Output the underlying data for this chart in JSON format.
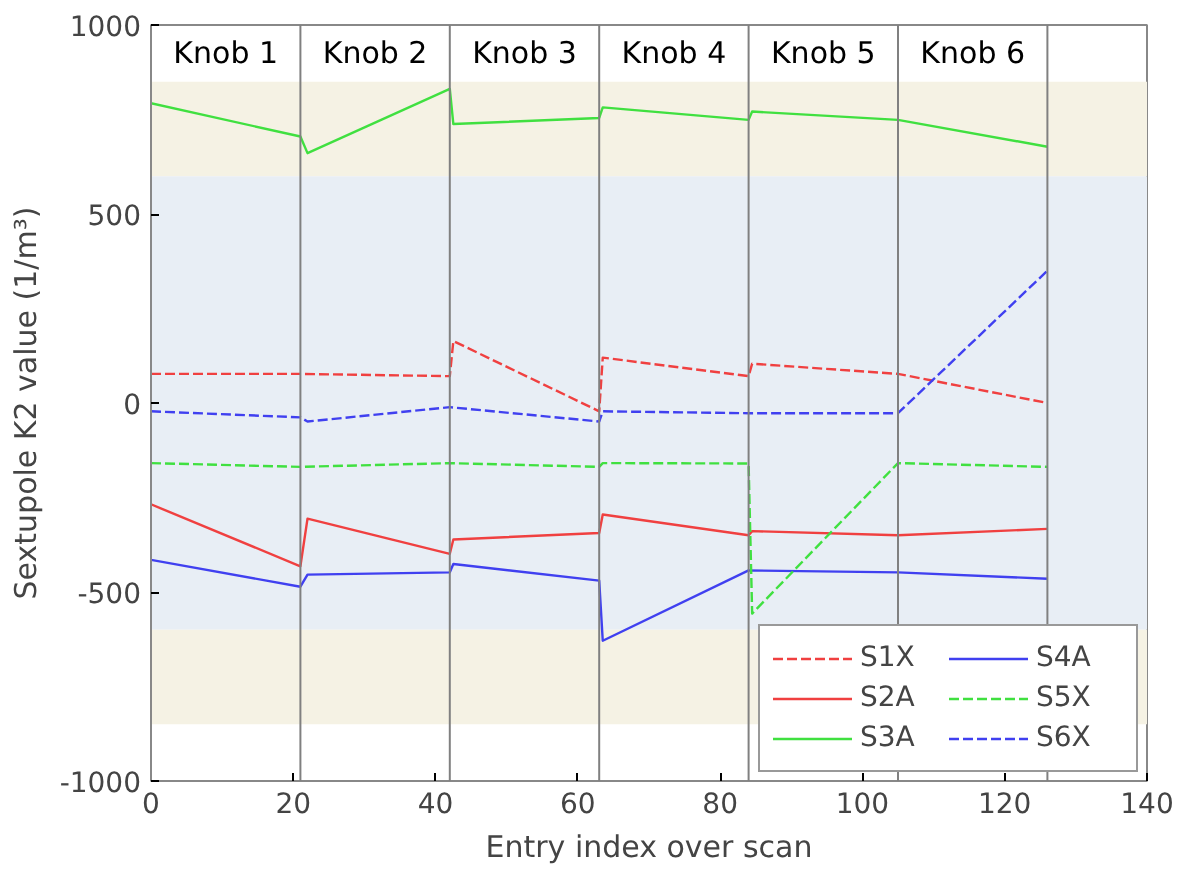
{
  "chart_data": {
    "type": "line",
    "xlabel": "Entry index over scan",
    "ylabel": "Sextupole K2 value (1/m³)",
    "xlim": [
      0,
      140
    ],
    "xticks": [
      0,
      20,
      40,
      60,
      80,
      100,
      120,
      140
    ],
    "ylim": [
      -1000,
      1000
    ],
    "yticks": [
      -1000,
      -500,
      0,
      500,
      1000
    ],
    "grid": false,
    "legend": "bottom right",
    "marker": "none",
    "bands": [
      {
        "axis": "y",
        "from": 600,
        "to": 850,
        "color": "#f5f2e4"
      },
      {
        "axis": "y",
        "from": -600,
        "to": 600,
        "color": "#e8eef5"
      },
      {
        "axis": "y",
        "from": -850,
        "to": -600,
        "color": "#f5f2e4"
      }
    ],
    "ref_lines": [
      {
        "axis": "x",
        "value": 21,
        "color": "#808080"
      },
      {
        "axis": "x",
        "value": 42,
        "color": "#808080"
      },
      {
        "axis": "x",
        "value": 63,
        "color": "#808080"
      },
      {
        "axis": "x",
        "value": 84,
        "color": "#808080"
      },
      {
        "axis": "x",
        "value": 105,
        "color": "#808080"
      },
      {
        "axis": "x",
        "value": 126,
        "color": "#808080"
      }
    ],
    "annotations": [
      "Knob 1",
      "Knob 2",
      "Knob 3",
      "Knob 4",
      "Knob 5",
      "Knob 6"
    ],
    "series": [
      {
        "name": "S1X",
        "color": "#f04040",
        "line_style": "dashed",
        "x": [
          0,
          21,
          42,
          42.5,
          63,
          63.5,
          84,
          84.5,
          105,
          126
        ],
        "values": [
          77,
          77,
          71,
          164,
          -22,
          120,
          71,
          104,
          77,
          0
        ]
      },
      {
        "name": "S2A",
        "color": "#f04040",
        "line_style": "solid",
        "x": [
          0,
          21,
          22,
          42,
          42.5,
          63,
          63.5,
          84,
          84.5,
          105,
          126
        ],
        "values": [
          -268,
          -432,
          -306,
          -399,
          -361,
          -344,
          -295,
          -350,
          -339,
          -350,
          -333
        ]
      },
      {
        "name": "S3A",
        "color": "#40e040",
        "line_style": "solid",
        "x": [
          0,
          21,
          22,
          42,
          42.5,
          63,
          63.5,
          84,
          84.5,
          105,
          126
        ],
        "values": [
          793,
          705,
          661,
          831,
          738,
          754,
          782,
          749,
          771,
          749,
          678
        ]
      },
      {
        "name": "S4A",
        "color": "#4040f0",
        "line_style": "solid",
        "x": [
          0,
          21,
          22,
          42,
          42.5,
          63,
          63.5,
          84,
          105,
          126
        ],
        "values": [
          -415,
          -486,
          -454,
          -448,
          -426,
          -470,
          -629,
          -443,
          -448,
          -465
        ]
      },
      {
        "name": "S5X",
        "color": "#40e040",
        "line_style": "dashed",
        "x": [
          0,
          21,
          42,
          63,
          63.5,
          84,
          84.5,
          105,
          126
        ],
        "values": [
          -159,
          -169,
          -159,
          -169,
          -159,
          -160,
          -557,
          -159,
          -169
        ]
      },
      {
        "name": "S6X",
        "color": "#4040f0",
        "line_style": "dashed",
        "x": [
          0,
          21,
          22,
          42,
          63,
          63.5,
          84,
          105,
          126
        ],
        "values": [
          -22,
          -38,
          -49,
          -11,
          -49,
          -22,
          -27,
          -27,
          350
        ]
      }
    ]
  }
}
